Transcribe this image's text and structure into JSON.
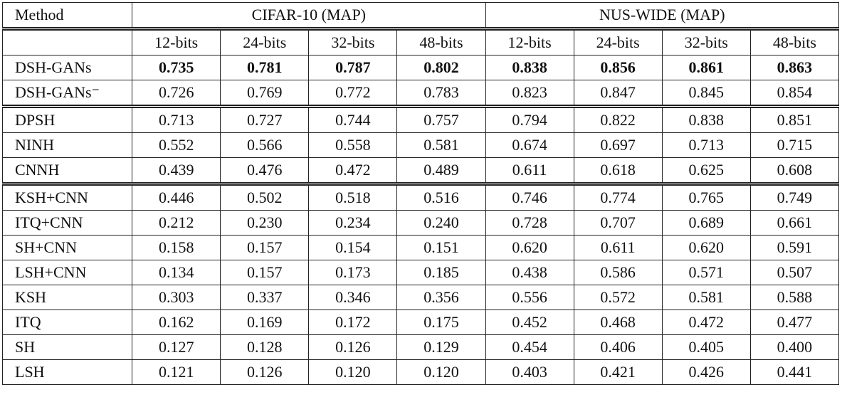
{
  "table": {
    "header": [
      "Method",
      "CIFAR-10 (MAP)",
      "NUS-WIDE (MAP)"
    ],
    "bits": [
      "12-bits",
      "24-bits",
      "32-bits",
      "48-bits",
      "12-bits",
      "24-bits",
      "32-bits",
      "48-bits"
    ],
    "groups": [
      {
        "rows": [
          {
            "method": "DSH-GANs",
            "bold": true,
            "values": [
              "0.735",
              "0.781",
              "0.787",
              "0.802",
              "0.838",
              "0.856",
              "0.861",
              "0.863"
            ]
          },
          {
            "method": "DSH-GANs⁻",
            "values": [
              "0.726",
              "0.769",
              "0.772",
              "0.783",
              "0.823",
              "0.847",
              "0.845",
              "0.854"
            ]
          }
        ]
      },
      {
        "rows": [
          {
            "method": "DPSH",
            "values": [
              "0.713",
              "0.727",
              "0.744",
              "0.757",
              "0.794",
              "0.822",
              "0.838",
              "0.851"
            ]
          },
          {
            "method": "NINH",
            "values": [
              "0.552",
              "0.566",
              "0.558",
              "0.581",
              "0.674",
              "0.697",
              "0.713",
              "0.715"
            ]
          },
          {
            "method": "CNNH",
            "values": [
              "0.439",
              "0.476",
              "0.472",
              "0.489",
              "0.611",
              "0.618",
              "0.625",
              "0.608"
            ]
          }
        ]
      },
      {
        "rows": [
          {
            "method": "KSH+CNN",
            "values": [
              "0.446",
              "0.502",
              "0.518",
              "0.516",
              "0.746",
              "0.774",
              "0.765",
              "0.749"
            ]
          },
          {
            "method": "ITQ+CNN",
            "values": [
              "0.212",
              "0.230",
              "0.234",
              "0.240",
              "0.728",
              "0.707",
              "0.689",
              "0.661"
            ]
          },
          {
            "method": "SH+CNN",
            "values": [
              "0.158",
              "0.157",
              "0.154",
              "0.151",
              "0.620",
              "0.611",
              "0.620",
              "0.591"
            ]
          },
          {
            "method": "LSH+CNN",
            "values": [
              "0.134",
              "0.157",
              "0.173",
              "0.185",
              "0.438",
              "0.586",
              "0.571",
              "0.507"
            ]
          },
          {
            "method": "KSH",
            "values": [
              "0.303",
              "0.337",
              "0.346",
              "0.356",
              "0.556",
              "0.572",
              "0.581",
              "0.588"
            ]
          },
          {
            "method": "ITQ",
            "values": [
              "0.162",
              "0.169",
              "0.172",
              "0.175",
              "0.452",
              "0.468",
              "0.472",
              "0.477"
            ]
          },
          {
            "method": "SH",
            "values": [
              "0.127",
              "0.128",
              "0.126",
              "0.129",
              "0.454",
              "0.406",
              "0.405",
              "0.400"
            ]
          },
          {
            "method": "LSH",
            "values": [
              "0.121",
              "0.126",
              "0.120",
              "0.120",
              "0.403",
              "0.421",
              "0.426",
              "0.441"
            ]
          }
        ]
      }
    ]
  }
}
